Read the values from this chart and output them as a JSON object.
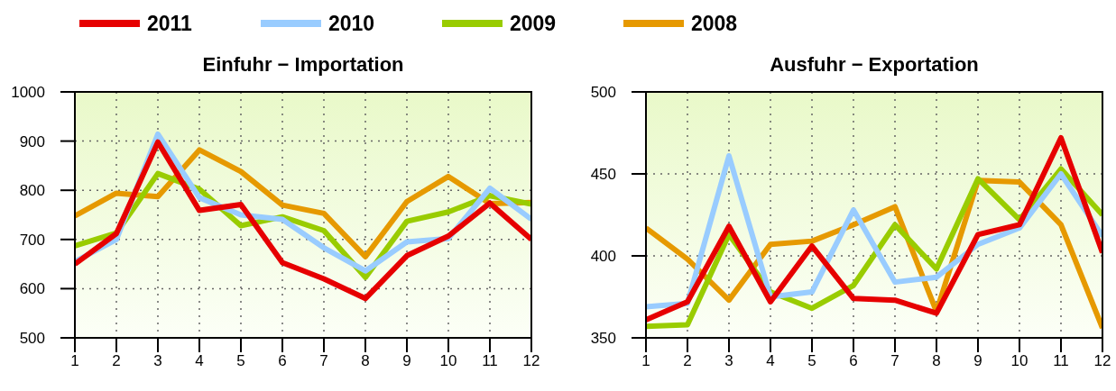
{
  "chart_data": [
    {
      "type": "line",
      "title": "Einfuhr − Importation",
      "x": [
        1,
        2,
        3,
        4,
        5,
        6,
        7,
        8,
        9,
        10,
        11,
        12
      ],
      "xlim": [
        1,
        12
      ],
      "xticks": [
        1,
        2,
        3,
        4,
        5,
        6,
        7,
        8,
        9,
        10,
        11,
        12
      ],
      "ylim": [
        500,
        1000
      ],
      "yticks": [
        500,
        600,
        700,
        800,
        900,
        1000
      ],
      "grid": true,
      "legend": "top",
      "series": [
        {
          "name": "2011",
          "color": "#e60000",
          "values": [
            650,
            712,
            898,
            759,
            771,
            653,
            620,
            580,
            667,
            707,
            774,
            700
          ]
        },
        {
          "name": "2010",
          "color": "#99ccff",
          "values": [
            655,
            700,
            914,
            785,
            750,
            741,
            683,
            636,
            695,
            702,
            804,
            741
          ]
        },
        {
          "name": "2009",
          "color": "#99cc00",
          "values": [
            687,
            713,
            834,
            802,
            728,
            746,
            718,
            623,
            737,
            756,
            789,
            772
          ]
        },
        {
          "name": "2008",
          "color": "#e69900",
          "values": [
            748,
            794,
            787,
            882,
            838,
            770,
            753,
            665,
            777,
            828,
            773,
            775
          ]
        }
      ]
    },
    {
      "type": "line",
      "title": "Ausfuhr − Exportation",
      "x": [
        1,
        2,
        3,
        4,
        5,
        6,
        7,
        8,
        9,
        10,
        11,
        12
      ],
      "xlim": [
        1,
        12
      ],
      "xticks": [
        1,
        2,
        3,
        4,
        5,
        6,
        7,
        8,
        9,
        10,
        11,
        12
      ],
      "ylim": [
        350,
        500
      ],
      "yticks": [
        350,
        400,
        450,
        500
      ],
      "grid": true,
      "series": [
        {
          "color": "#e60000",
          "values": [
            361,
            372,
            418,
            372,
            406,
            374,
            373,
            365,
            413,
            419,
            472,
            402
          ]
        },
        {
          "color": "#99ccff",
          "values": [
            369,
            371,
            461,
            375,
            378,
            428,
            384,
            387,
            407,
            417,
            450,
            412
          ]
        },
        {
          "color": "#99cc00",
          "values": [
            357,
            358,
            413,
            378,
            368,
            382,
            419,
            392,
            447,
            422,
            453,
            425
          ]
        },
        {
          "color": "#e69900",
          "values": [
            417,
            398,
            373,
            407,
            409,
            419,
            430,
            366,
            446,
            445,
            419,
            356
          ]
        }
      ]
    }
  ]
}
